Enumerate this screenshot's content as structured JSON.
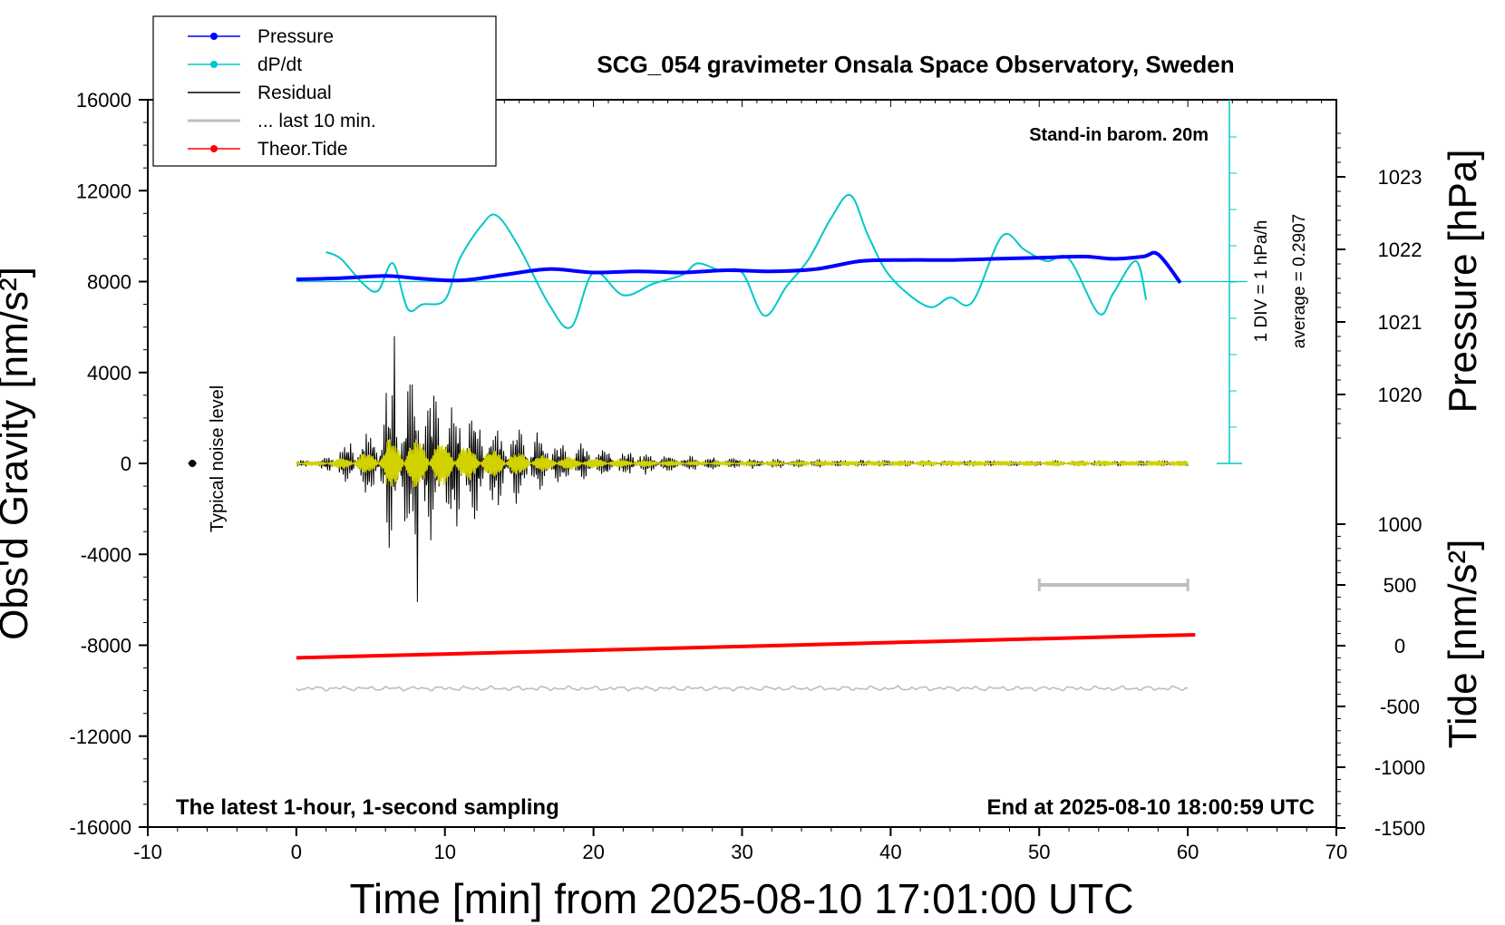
{
  "chart_data": {
    "type": "line",
    "title": "SCG_054 gravimeter Onsala Space Observatory, Sweden",
    "xlabel": "Time [min] from 2025-08-10 17:01:00 UTC",
    "ylabel_left": "Obs'd Gravity [nm/s²]",
    "ylabel_pressure": "Pressure [hPa]",
    "ylabel_tide": "Tide [nm/s²]",
    "xlim": [
      -10,
      70
    ],
    "ylim": [
      -16000,
      16000
    ],
    "x_ticks": [
      "-10",
      "0",
      "10",
      "20",
      "30",
      "40",
      "50",
      "60",
      "70"
    ],
    "y_ticks": [
      "16000",
      "12000",
      "8000",
      "4000",
      "0",
      "-4000",
      "-8000",
      "-12000",
      "-16000"
    ],
    "pressure_ticks": [
      "1023",
      "1022",
      "1021",
      "1020"
    ],
    "pressure_tick_values": [
      1023,
      1022,
      1021,
      1020
    ],
    "tide_ticks": [
      "1000",
      "500",
      "0",
      "-500",
      "-1000",
      "-1500"
    ],
    "tide_tick_values": [
      1000,
      500,
      0,
      -500,
      -1000,
      -1500
    ],
    "annotations": {
      "barometer": "Stand-in barom. 20m",
      "footer_left": "The latest 1-hour, 1-second sampling",
      "footer_right": "End at 2025-08-10 18:00:59 UTC",
      "noise": "Typical noise level",
      "div_label": "1 DIV = 1 hPa/h",
      "average_label": "average = 0.2907"
    },
    "legend": [
      {
        "name": "Pressure",
        "color": "#0000ff",
        "marker": true
      },
      {
        "name": "dP/dt",
        "color": "#00c8c8",
        "marker": true
      },
      {
        "name": "Residual",
        "color": "#000000",
        "marker": false
      },
      {
        "name": "... last 10 min.",
        "color": "#bebebe",
        "marker": false
      },
      {
        "name": "Theor.Tide",
        "color": "#ff0000",
        "marker": true
      }
    ],
    "series": [
      {
        "name": "Pressure",
        "color": "#0000ff",
        "x": [
          0,
          3,
          6,
          8,
          11,
          14,
          17,
          20,
          23,
          26,
          29,
          32,
          35,
          38,
          41,
          44,
          47,
          50,
          53,
          55,
          57,
          58,
          59.5
        ],
        "y": [
          8100,
          8150,
          8250,
          8150,
          8050,
          8300,
          8550,
          8400,
          8450,
          8400,
          8500,
          8450,
          8550,
          8900,
          8950,
          8950,
          9000,
          9050,
          9100,
          9000,
          9100,
          9200,
          7950
        ]
      },
      {
        "name": "dP/dt",
        "color": "#00c8c8",
        "x": [
          2,
          3,
          4.5,
          5.5,
          6.5,
          7.5,
          8.5,
          10,
          11,
          12.5,
          13.5,
          15,
          17,
          18.5,
          20,
          22,
          24,
          26,
          27,
          28.5,
          30,
          31.5,
          33,
          34.5,
          36,
          37.3,
          38.5,
          40,
          42.5,
          44,
          45.5,
          47.5,
          49,
          50.5,
          52,
          54,
          55,
          56.5,
          57.2
        ],
        "y": [
          9300,
          9000,
          7900,
          7600,
          8800,
          6800,
          7000,
          7200,
          9000,
          10500,
          10900,
          9500,
          7000,
          6000,
          8400,
          7400,
          7900,
          8300,
          8800,
          8500,
          8400,
          6500,
          7800,
          9000,
          10800,
          11800,
          10000,
          8200,
          6900,
          7300,
          7100,
          10000,
          9400,
          8900,
          9000,
          6600,
          7500,
          8900,
          7200
        ]
      },
      {
        "name": "Residual",
        "color": "#000000",
        "peak_max": 5600,
        "peak_min": -6100
      },
      {
        "name": "... last 10 min.",
        "color": "#bebebe",
        "x": [
          50,
          60
        ],
        "tide_level": 500
      },
      {
        "name": "Theor.Tide",
        "color": "#ff0000",
        "x": [
          0,
          60.5
        ],
        "y_tide": [
          -100,
          90
        ]
      },
      {
        "name": "Residual (yellow overlay)",
        "color": "#d2d200"
      },
      {
        "name": "Gray reference",
        "color": "#bebebe",
        "y_level": -9900
      }
    ],
    "dpdt_zero_level": 8000,
    "noise_marker": {
      "x": -7,
      "y": 0
    }
  }
}
